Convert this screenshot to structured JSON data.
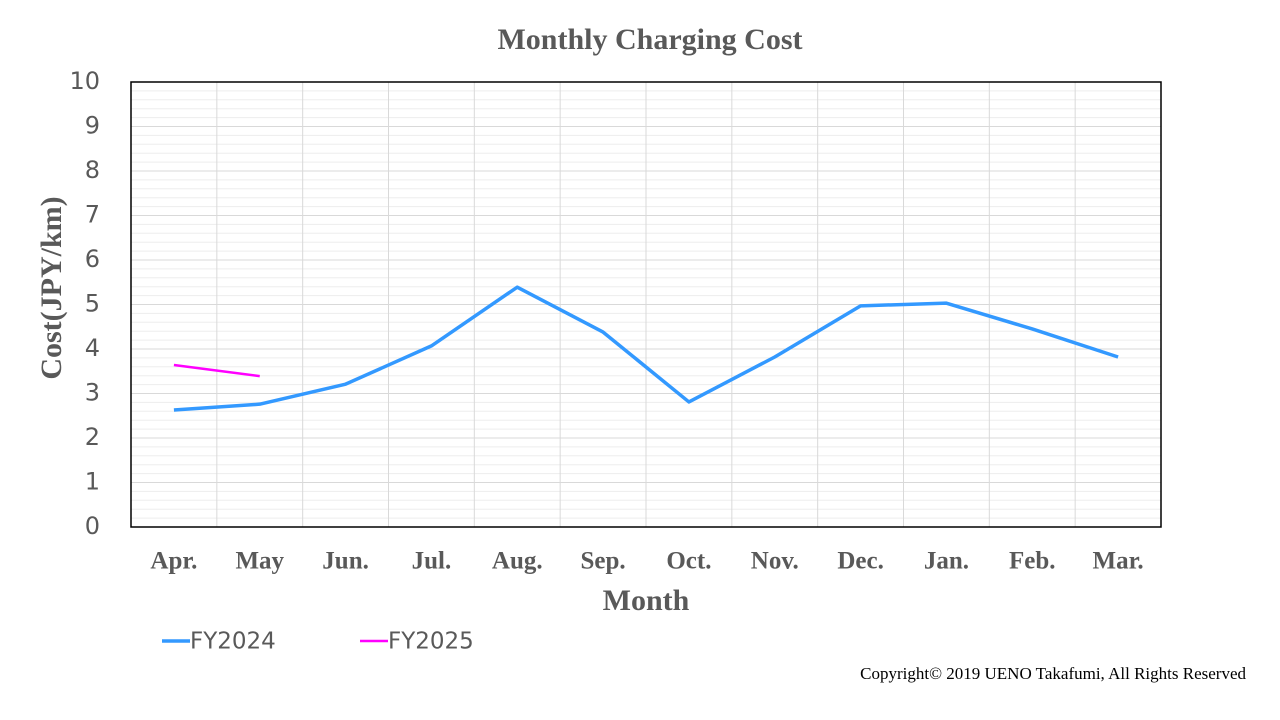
{
  "chart_data": {
    "type": "line",
    "title": "Monthly Charging Cost",
    "x_label": "Month",
    "y_label": "Cost(JPY/km)",
    "categories": [
      "Apr.",
      "May",
      "Jun.",
      "Jul.",
      "Aug.",
      "Sep.",
      "Oct.",
      "Nov.",
      "Dec.",
      "Jan.",
      "Feb.",
      "Mar."
    ],
    "series": [
      {
        "name": "FY2024",
        "color": "#3399ff",
        "values": [
          2.63,
          2.76,
          3.21,
          4.07,
          5.39,
          4.38,
          2.81,
          3.82,
          4.97,
          5.03,
          4.45,
          3.82
        ]
      },
      {
        "name": "FY2025",
        "color": "#ff00ff",
        "values": [
          3.64,
          3.39,
          null,
          null,
          null,
          null,
          null,
          null,
          null,
          null,
          null,
          null
        ]
      }
    ],
    "ylim": [
      0,
      10
    ],
    "yticks": [
      0,
      1,
      2,
      3,
      4,
      5,
      6,
      7,
      8,
      9,
      10
    ],
    "grid": true,
    "legend": "bottom-left",
    "copyright": "Copyright© 2019 UENO Takafumi, All Rights Reserved"
  }
}
